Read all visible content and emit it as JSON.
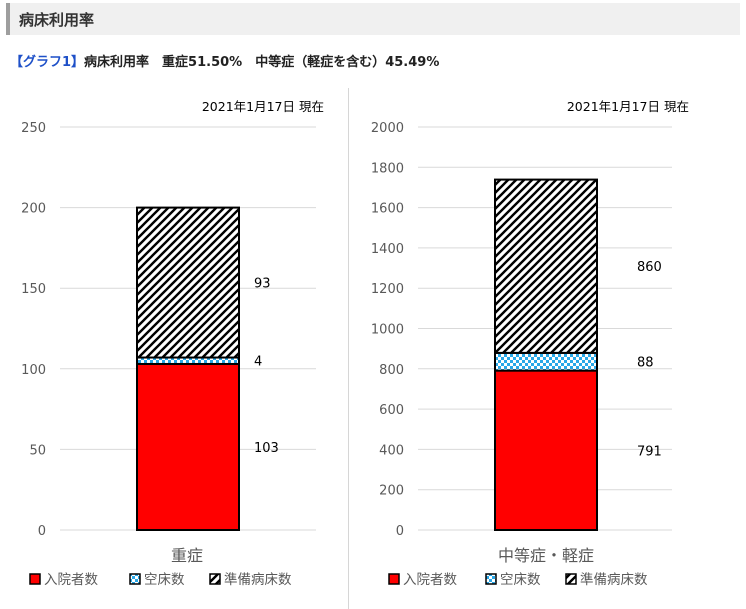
{
  "section": {
    "title": "病床利用率"
  },
  "subtitle": {
    "tag": "【グラフ1】",
    "text": "病床利用率　重症51.50%　中等症（軽症を含む）45.49%"
  },
  "colors": {
    "inpatients": "#ff0000",
    "vacant": "#29a8e8",
    "reserve": "#000000",
    "grid": "#d9d9d9",
    "axis_text": "#595959"
  },
  "chart_data": [
    {
      "type": "bar",
      "stacked": true,
      "date_label": "2021年1月17日 現在",
      "categories": [
        "重症"
      ],
      "ylim": [
        0,
        250
      ],
      "yticks": [
        0,
        50,
        100,
        150,
        200,
        250
      ],
      "grid": true,
      "legend_position": "bottom",
      "series": [
        {
          "name": "入院者数",
          "values": [
            103
          ],
          "pattern": "solid",
          "color": "#ff0000"
        },
        {
          "name": "空床数",
          "values": [
            4
          ],
          "pattern": "checker",
          "color": "#29a8e8"
        },
        {
          "name": "準備病床数",
          "values": [
            93
          ],
          "pattern": "diagonal",
          "color": "#000000"
        }
      ]
    },
    {
      "type": "bar",
      "stacked": true,
      "date_label": "2021年1月17日 現在",
      "categories": [
        "中等症・軽症"
      ],
      "ylim": [
        0,
        2000
      ],
      "yticks": [
        0,
        200,
        400,
        600,
        800,
        1000,
        1200,
        1400,
        1600,
        1800,
        2000
      ],
      "grid": true,
      "legend_position": "bottom",
      "series": [
        {
          "name": "入院者数",
          "values": [
            791
          ],
          "pattern": "solid",
          "color": "#ff0000"
        },
        {
          "name": "空床数",
          "values": [
            88
          ],
          "pattern": "checker",
          "color": "#29a8e8"
        },
        {
          "name": "準備病床数",
          "values": [
            860
          ],
          "pattern": "diagonal",
          "color": "#000000"
        }
      ]
    }
  ]
}
